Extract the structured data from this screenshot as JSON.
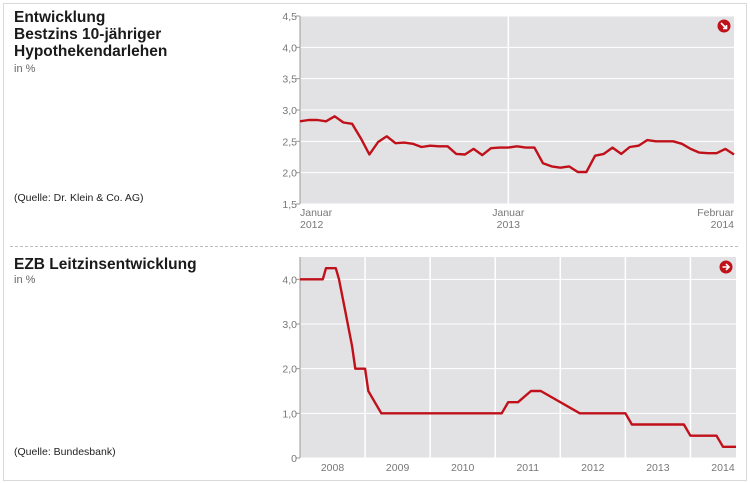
{
  "chart1": {
    "title_lines": [
      "Entwicklung",
      "Bestzins 10-jähriger",
      "Hypothekendarlehen"
    ],
    "unit": "in %",
    "source": "(Quelle: Dr. Klein & Co. AG)"
  },
  "chart2": {
    "title_lines": [
      "EZB Leitzinsentwicklung"
    ],
    "unit": "in %",
    "source": "(Quelle: Bundesbank)"
  },
  "colors": {
    "line": "#c0111a",
    "plot_bg": "#e2e2e4",
    "grid": "#ffffff",
    "axis_text": "#777777"
  },
  "icons": {
    "chart1_corner": "arrow-badge-icon",
    "chart2_corner": "arrow-right-badge-icon"
  },
  "chart_data": [
    {
      "type": "line",
      "title": "Entwicklung Bestzins 10-jähriger Hypothekendarlehen",
      "ylabel": "in %",
      "ylim": [
        1.5,
        4.5
      ],
      "yticks": [
        "4,5",
        "4,0",
        "3,5",
        "3,0",
        "2,5",
        "2,0",
        "1,5"
      ],
      "yticks_values": [
        4.5,
        4.0,
        3.5,
        3.0,
        2.5,
        2.0,
        1.5
      ],
      "xlim": [
        0,
        25
      ],
      "x_tick_labels": [
        {
          "at": 0,
          "lines": [
            "Januar",
            "2012"
          ]
        },
        {
          "at": 12,
          "lines": [
            "Januar",
            "2013"
          ]
        },
        {
          "at": 25,
          "lines": [
            "Februar",
            "2014"
          ]
        }
      ],
      "vertical_gridlines_at": [
        12
      ],
      "series": [
        {
          "x": [
            0,
            0.5,
            1,
            1.5,
            2,
            2.5,
            3,
            3.5,
            4,
            4.5,
            5,
            5.5,
            6,
            6.5,
            7,
            7.5,
            8,
            8.5,
            9,
            9.5,
            10,
            10.5,
            11,
            11.5,
            12,
            12.5,
            13,
            13.5,
            14,
            14.5,
            15,
            15.5,
            16,
            16.5,
            17,
            17.5,
            18,
            18.5,
            19,
            19.5,
            20,
            20.5,
            21,
            21.5,
            22,
            22.5,
            23,
            23.5,
            24,
            24.5,
            25
          ],
          "values": [
            2.82,
            2.84,
            2.84,
            2.82,
            2.9,
            2.8,
            2.78,
            2.55,
            2.29,
            2.49,
            2.58,
            2.47,
            2.48,
            2.46,
            2.41,
            2.43,
            2.42,
            2.42,
            2.3,
            2.29,
            2.38,
            2.28,
            2.39,
            2.4,
            2.4,
            2.42,
            2.4,
            2.4,
            2.15,
            2.1,
            2.08,
            2.1,
            2.01,
            2.01,
            2.27,
            2.3,
            2.4,
            2.3,
            2.41,
            2.43,
            2.52,
            2.5,
            2.5,
            2.5,
            2.46,
            2.38,
            2.32,
            2.31,
            2.31,
            2.38,
            2.29
          ]
        }
      ]
    },
    {
      "type": "line",
      "title": "EZB Leitzinsentwicklung",
      "ylabel": "in %",
      "ylim": [
        0,
        4.5
      ],
      "yticks": [
        "4,0",
        "3,0",
        "2,0",
        "1,0",
        "0"
      ],
      "yticks_values": [
        4.0,
        3.0,
        2.0,
        1.0,
        0
      ],
      "xlim": [
        2007.5,
        2014.2
      ],
      "x_tick_labels": [
        {
          "at": 2008,
          "lines": [
            "2008"
          ]
        },
        {
          "at": 2009,
          "lines": [
            "2009"
          ]
        },
        {
          "at": 2010,
          "lines": [
            "2010"
          ]
        },
        {
          "at": 2011,
          "lines": [
            "2011"
          ]
        },
        {
          "at": 2012,
          "lines": [
            "2012"
          ]
        },
        {
          "at": 2013,
          "lines": [
            "2013"
          ]
        },
        {
          "at": 2014,
          "lines": [
            "2014"
          ]
        }
      ],
      "vertical_gridlines_at": [
        2008.5,
        2009.5,
        2010.5,
        2011.5,
        2012.5,
        2013.5
      ],
      "series": [
        {
          "x": [
            2007.5,
            2007.85,
            2007.9,
            2008.05,
            2008.1,
            2008.2,
            2008.3,
            2008.35,
            2008.45,
            2008.5,
            2008.55,
            2008.65,
            2008.75,
            2009.5,
            2010.5,
            2010.6,
            2010.7,
            2010.75,
            2010.85,
            2011.05,
            2011.2,
            2011.8,
            2011.9,
            2012.5,
            2012.6,
            2013.4,
            2013.5,
            2013.9,
            2014.0,
            2014.2
          ],
          "values": [
            4.0,
            4.0,
            4.25,
            4.25,
            4.0,
            3.25,
            2.5,
            2.0,
            2.0,
            2.0,
            1.5,
            1.25,
            1.0,
            1.0,
            1.0,
            1.0,
            1.25,
            1.25,
            1.25,
            1.5,
            1.5,
            1.0,
            1.0,
            1.0,
            0.75,
            0.75,
            0.5,
            0.5,
            0.25,
            0.25
          ]
        }
      ]
    }
  ]
}
